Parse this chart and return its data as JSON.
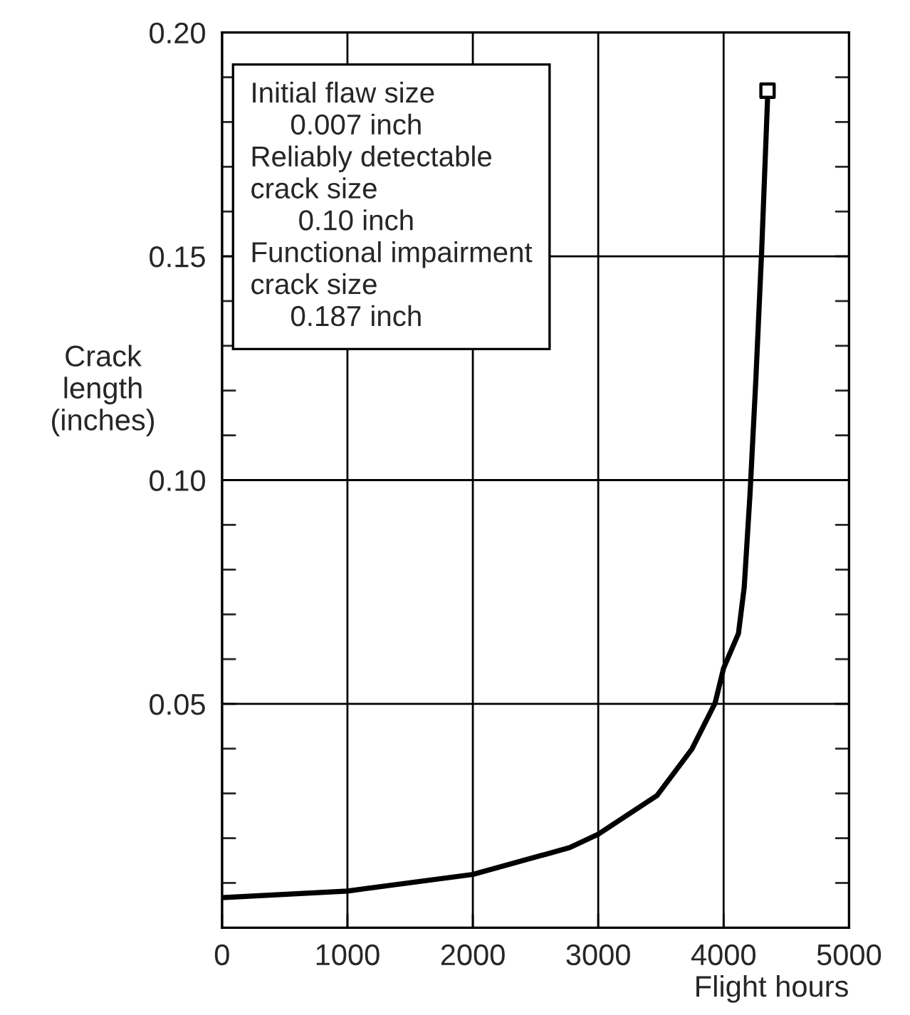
{
  "chart_data": {
    "type": "line",
    "xlabel": "Flight hours",
    "ylabel": "Crack\nlength\n(inches)",
    "series": [
      {
        "color": "#000000",
        "x": [
          0,
          1000,
          2000,
          2773,
          3000,
          3468,
          3747,
          3932,
          4000,
          4118,
          4164,
          4210,
          4257,
          4303,
          4350
        ],
        "values": [
          0.0067,
          0.0082,
          0.0119,
          0.0179,
          0.0209,
          0.0295,
          0.0399,
          0.0502,
          0.058,
          0.0657,
          0.076,
          0.0967,
          0.1225,
          0.151,
          0.185
        ]
      },
      {
        "type": "scatter",
        "color": "#000000",
        "marker": "square",
        "x": [
          4350
        ],
        "values": [
          0.187
        ]
      }
    ],
    "xlim": [
      0,
      5000
    ],
    "xticks": [
      0,
      1000,
      2000,
      3000,
      4000,
      5000
    ],
    "ylim": [
      0,
      0.2
    ],
    "yticks": [
      {
        "value": 0.01,
        "label": null
      },
      {
        "value": 0.02,
        "label": null
      },
      {
        "value": 0.03,
        "label": null
      },
      {
        "value": 0.04,
        "label": null
      },
      {
        "value": 0.05,
        "label": "0.05"
      },
      {
        "value": 0.06,
        "label": null
      },
      {
        "value": 0.07,
        "label": null
      },
      {
        "value": 0.08,
        "label": null
      },
      {
        "value": 0.09,
        "label": null
      },
      {
        "value": 0.1,
        "label": "0.10"
      },
      {
        "value": 0.11,
        "label": null
      },
      {
        "value": 0.12,
        "label": null
      },
      {
        "value": 0.13,
        "label": null
      },
      {
        "value": 0.14,
        "label": null
      },
      {
        "value": 0.15,
        "label": "0.15"
      },
      {
        "value": 0.16,
        "label": null
      },
      {
        "value": 0.17,
        "label": null
      },
      {
        "value": 0.18,
        "label": null
      },
      {
        "value": 0.19,
        "label": null
      },
      {
        "value": 0.2,
        "label": "0.20"
      }
    ],
    "grid": true,
    "annotations": [
      "Initial flaw size\n     0.007 inch\nReliably detectable\ncrack size\n      0.10 inch\nFunctional impairment\ncrack size\n     0.187 inch"
    ]
  }
}
